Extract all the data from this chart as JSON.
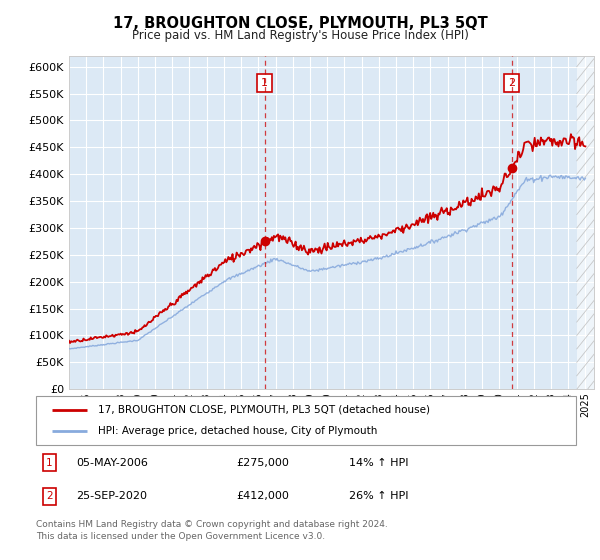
{
  "title": "17, BROUGHTON CLOSE, PLYMOUTH, PL3 5QT",
  "subtitle": "Price paid vs. HM Land Registry's House Price Index (HPI)",
  "ylim": [
    0,
    620000
  ],
  "background_color": "#dce9f5",
  "grid_color": "#ffffff",
  "sale1_date": 2006.37,
  "sale1_price": 275000,
  "sale2_date": 2020.73,
  "sale2_price": 412000,
  "legend_line1": "17, BROUGHTON CLOSE, PLYMOUTH, PL3 5QT (detached house)",
  "legend_line2": "HPI: Average price, detached house, City of Plymouth",
  "footer": "Contains HM Land Registry data © Crown copyright and database right 2024.\nThis data is licensed under the Open Government Licence v3.0.",
  "line_red_color": "#cc0000",
  "line_blue_color": "#88aadd",
  "marker_color": "#cc0000",
  "xmin": 1995,
  "xmax": 2025
}
